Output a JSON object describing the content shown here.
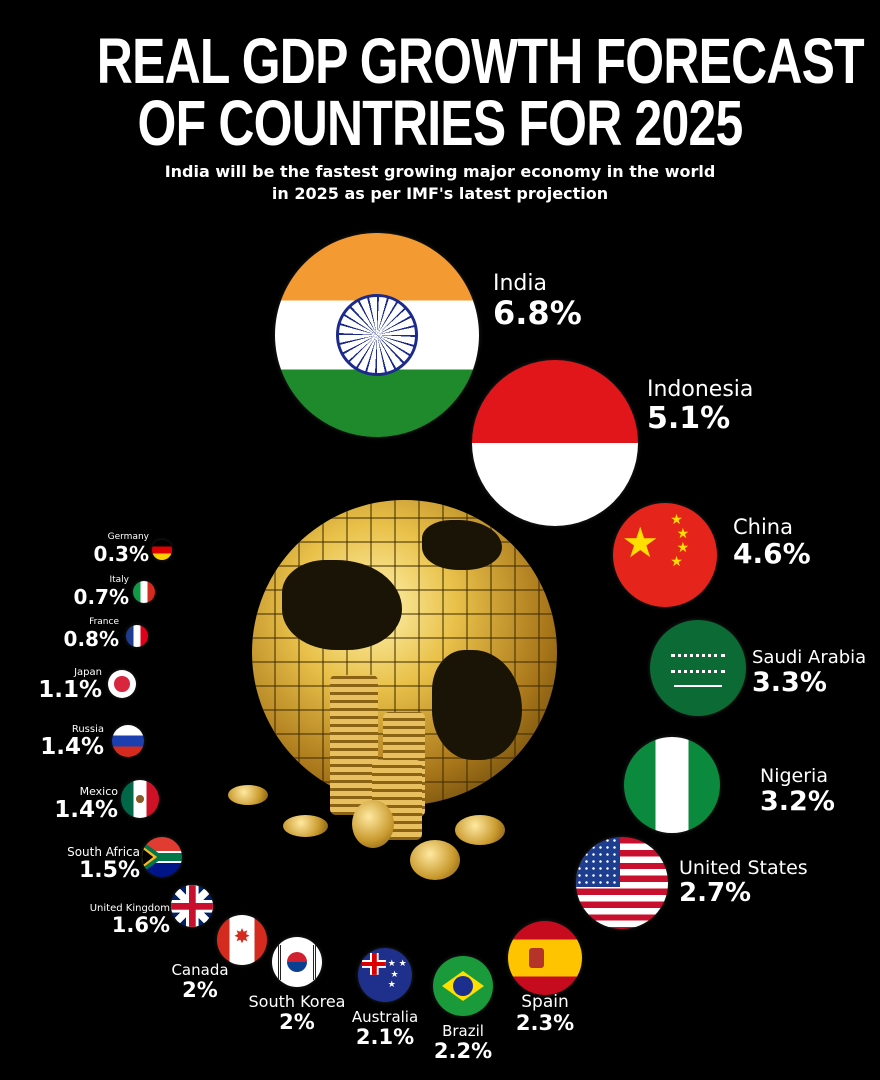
{
  "header": {
    "title_line1": "REAL GDP GROWTH FORECAST",
    "title_line2": "OF COUNTRIES FOR 2025",
    "subtitle_line1": "India will be the fastest growing major economy in the world",
    "subtitle_line2": "in 2025 as per IMF's latest projection"
  },
  "colors": {
    "background": "#000000",
    "text": "#ffffff",
    "globe": "#d4a93a"
  },
  "chart_data": {
    "type": "bubble",
    "title": "REAL GDP GROWTH FORECAST OF COUNTRIES FOR 2025",
    "unit": "%",
    "categories": [
      "India",
      "Indonesia",
      "China",
      "Saudi Arabia",
      "Nigeria",
      "United States",
      "Spain",
      "Brazil",
      "Australia",
      "South Korea",
      "Canada",
      "United Kingdom",
      "South Africa",
      "Mexico",
      "Russia",
      "Japan",
      "France",
      "Italy",
      "Germany"
    ],
    "values": [
      6.8,
      5.1,
      4.6,
      3.3,
      3.2,
      2.7,
      2.3,
      2.2,
      2.1,
      2,
      2,
      1.6,
      1.5,
      1.4,
      1.4,
      1.1,
      0.8,
      0.7,
      0.3
    ],
    "labels": [
      "6.8%",
      "5.1%",
      "4.6%",
      "3.3%",
      "3.2%",
      "2.7%",
      "2.3%",
      "2.2%",
      "2.1%",
      "2%",
      "2%",
      "1.6%",
      "1.5%",
      "1.4%",
      "1.4%",
      "1.1%",
      "0.8%",
      "0.7%",
      "0.3%"
    ],
    "flags": [
      "india",
      "indonesia",
      "china",
      "saudi",
      "nigeria",
      "us",
      "spain",
      "brazil",
      "australia",
      "korea",
      "canada",
      "uk",
      "southafrica",
      "mexico",
      "russia",
      "japan",
      "france",
      "italy",
      "germany"
    ]
  }
}
